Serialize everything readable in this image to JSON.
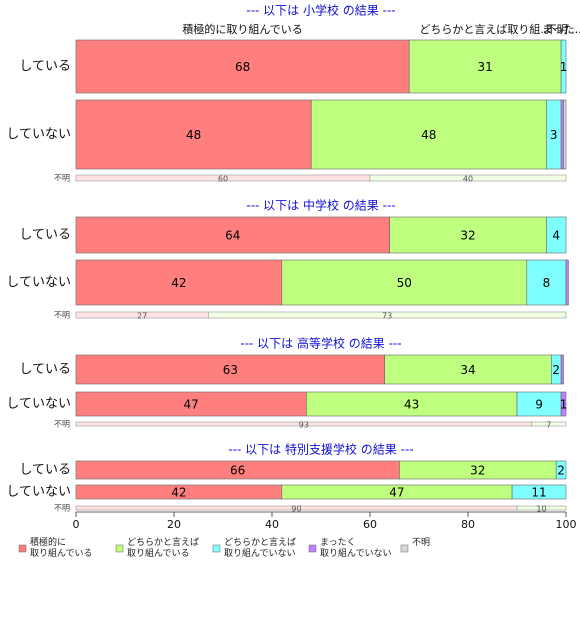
{
  "chart_data": [
    {
      "type": "bar",
      "title": "--- 以下は 小学校 の結果 ---",
      "annotations": [
        "積極的に取り組んでいる",
        "どちらかと言えば取り組...",
        "まった...",
        "不明..."
      ],
      "categories": [
        "している",
        "していない",
        "不明"
      ],
      "series": [
        {
          "name": "積極的に\n取り組んでいる",
          "color": "#ff7f7f",
          "values": [
            68,
            48,
            60
          ]
        },
        {
          "name": "どちらかと言えば\n取り組んでいる",
          "color": "#bfff7f",
          "values": [
            31,
            48,
            40
          ]
        },
        {
          "name": "どちらかと言えば\n取り組んでいない",
          "color": "#7fffff",
          "values": [
            1,
            3,
            0
          ]
        },
        {
          "name": "まったく\n取り組んでいない",
          "color": "#bf7fff",
          "values": [
            0,
            0.5,
            0
          ]
        },
        {
          "name": "不明",
          "color": "#d9d9d9",
          "values": [
            0,
            0.5,
            0
          ]
        }
      ],
      "xlim": [
        0,
        100
      ]
    },
    {
      "type": "bar",
      "title": "--- 以下は 中学校 の結果 ---",
      "categories": [
        "している",
        "していない",
        "不明"
      ],
      "series": [
        {
          "name": "積極的に\n取り組んでいる",
          "color": "#ff7f7f",
          "values": [
            64,
            42,
            27
          ]
        },
        {
          "name": "どちらかと言えば\n取り組んでいる",
          "color": "#bfff7f",
          "values": [
            32,
            50,
            73
          ]
        },
        {
          "name": "どちらかと言えば\n取り組んでいない",
          "color": "#7fffff",
          "values": [
            4,
            8,
            0
          ]
        },
        {
          "name": "まったく\n取り組んでいない",
          "color": "#bf7fff",
          "values": [
            0,
            0.5,
            0
          ]
        },
        {
          "name": "不明",
          "color": "#d9d9d9",
          "values": [
            0,
            0,
            0
          ]
        }
      ],
      "xlim": [
        0,
        100
      ]
    },
    {
      "type": "bar",
      "title": "--- 以下は 高等学校 の結果 ---",
      "categories": [
        "している",
        "していない",
        "不明"
      ],
      "series": [
        {
          "name": "積極的に\n取り組んでいる",
          "color": "#ff7f7f",
          "values": [
            63,
            47,
            93
          ]
        },
        {
          "name": "どちらかと言えば\n取り組んでいる",
          "color": "#bfff7f",
          "values": [
            34,
            43,
            7
          ]
        },
        {
          "name": "どちらかと言えば\n取り組んでいない",
          "color": "#7fffff",
          "values": [
            2,
            9,
            0
          ]
        },
        {
          "name": "まったく\n取り組んでいない",
          "color": "#bf7fff",
          "values": [
            0.5,
            1,
            0
          ]
        },
        {
          "name": "不明",
          "color": "#d9d9d9",
          "values": [
            0,
            0,
            0
          ]
        }
      ],
      "xlim": [
        0,
        100
      ]
    },
    {
      "type": "bar",
      "title": "--- 以下は 特別支援学校 の結果 ---",
      "categories": [
        "している",
        "していない",
        "不明"
      ],
      "series": [
        {
          "name": "積極的に\n取り組んでいる",
          "color": "#ff7f7f",
          "values": [
            66,
            42,
            90
          ]
        },
        {
          "name": "どちらかと言えば\n取り組んでいる",
          "color": "#bfff7f",
          "values": [
            32,
            47,
            10
          ]
        },
        {
          "name": "どちらかと言えば\n取り組んでいない",
          "color": "#7fffff",
          "values": [
            2,
            11,
            0
          ]
        },
        {
          "name": "まったく\n取り組んでいない",
          "color": "#bf7fff",
          "values": [
            0,
            0,
            0
          ]
        },
        {
          "name": "不明",
          "color": "#d9d9d9",
          "values": [
            0,
            0,
            0
          ]
        }
      ],
      "xlim": [
        0,
        100
      ],
      "xticks": [
        0,
        20,
        40,
        60,
        80,
        100
      ]
    }
  ]
}
